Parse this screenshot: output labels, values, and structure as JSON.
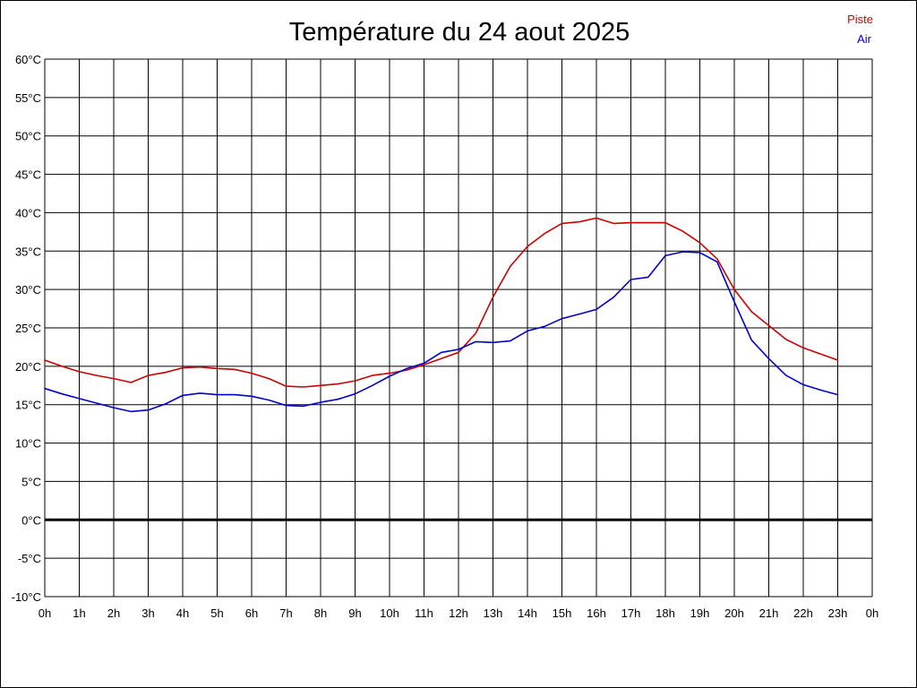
{
  "chart_data": {
    "type": "line",
    "title": "Température du 24 aout 2025",
    "xlabel": "",
    "ylabel": "",
    "x_ticks": [
      "0h",
      "1h",
      "2h",
      "3h",
      "4h",
      "5h",
      "6h",
      "7h",
      "8h",
      "9h",
      "10h",
      "11h",
      "12h",
      "13h",
      "14h",
      "15h",
      "16h",
      "17h",
      "18h",
      "19h",
      "20h",
      "21h",
      "22h",
      "23h",
      "0h"
    ],
    "y_ticks": [
      "60°C",
      "55°C",
      "50°C",
      "45°C",
      "40°C",
      "35°C",
      "30°C",
      "25°C",
      "20°C",
      "15°C",
      "10°C",
      "5°C",
      "0°C",
      "-5°C",
      "-10°C"
    ],
    "xlim": [
      0,
      24
    ],
    "ylim": [
      -10,
      60
    ],
    "grid": true,
    "legend_position": "top-right",
    "series": [
      {
        "name": "Piste",
        "color": "#cc0000",
        "points": [
          [
            0,
            20.8
          ],
          [
            0.5,
            20.0
          ],
          [
            1,
            19.3
          ],
          [
            1.5,
            18.8
          ],
          [
            2,
            18.4
          ],
          [
            2.5,
            17.9
          ],
          [
            3,
            18.8
          ],
          [
            3.5,
            19.2
          ],
          [
            4,
            19.8
          ],
          [
            4.5,
            19.9
          ],
          [
            5,
            19.7
          ],
          [
            5.5,
            19.6
          ],
          [
            6,
            19.1
          ],
          [
            6.5,
            18.4
          ],
          [
            7,
            17.4
          ],
          [
            7.5,
            17.3
          ],
          [
            8,
            17.5
          ],
          [
            8.5,
            17.7
          ],
          [
            9,
            18.1
          ],
          [
            9.5,
            18.8
          ],
          [
            10,
            19.1
          ],
          [
            10.5,
            19.5
          ],
          [
            11,
            20.2
          ],
          [
            11.5,
            21.0
          ],
          [
            12,
            21.8
          ],
          [
            12.5,
            24.3
          ],
          [
            13,
            29.0
          ],
          [
            13.5,
            33.0
          ],
          [
            14,
            35.6
          ],
          [
            14.5,
            37.3
          ],
          [
            15,
            38.6
          ],
          [
            15.5,
            38.8
          ],
          [
            16,
            39.3
          ],
          [
            16.5,
            38.6
          ],
          [
            17,
            38.7
          ],
          [
            17.5,
            38.7
          ],
          [
            18,
            38.7
          ],
          [
            18.5,
            37.6
          ],
          [
            19,
            36.1
          ],
          [
            19.5,
            34.0
          ],
          [
            20,
            30.0
          ],
          [
            20.5,
            27.1
          ],
          [
            21,
            25.3
          ],
          [
            21.5,
            23.5
          ],
          [
            22,
            22.4
          ],
          [
            22.5,
            21.6
          ],
          [
            23,
            20.8
          ]
        ]
      },
      {
        "name": "Air",
        "color": "#0000cc",
        "points": [
          [
            0,
            17.1
          ],
          [
            0.5,
            16.4
          ],
          [
            1,
            15.8
          ],
          [
            1.5,
            15.2
          ],
          [
            2,
            14.6
          ],
          [
            2.5,
            14.1
          ],
          [
            3,
            14.3
          ],
          [
            3.5,
            15.1
          ],
          [
            4,
            16.2
          ],
          [
            4.5,
            16.5
          ],
          [
            5,
            16.3
          ],
          [
            5.5,
            16.3
          ],
          [
            6,
            16.1
          ],
          [
            6.5,
            15.6
          ],
          [
            7,
            14.9
          ],
          [
            7.5,
            14.8
          ],
          [
            8,
            15.3
          ],
          [
            8.5,
            15.7
          ],
          [
            9,
            16.4
          ],
          [
            9.5,
            17.5
          ],
          [
            10,
            18.7
          ],
          [
            10.5,
            19.7
          ],
          [
            11,
            20.4
          ],
          [
            11.5,
            21.8
          ],
          [
            12,
            22.2
          ],
          [
            12.5,
            23.2
          ],
          [
            13,
            23.1
          ],
          [
            13.5,
            23.3
          ],
          [
            14,
            24.6
          ],
          [
            14.5,
            25.2
          ],
          [
            15,
            26.2
          ],
          [
            15.5,
            26.8
          ],
          [
            16,
            27.4
          ],
          [
            16.5,
            29.0
          ],
          [
            17,
            31.3
          ],
          [
            17.5,
            31.6
          ],
          [
            18,
            34.4
          ],
          [
            18.5,
            34.9
          ],
          [
            19,
            34.8
          ],
          [
            19.5,
            33.6
          ],
          [
            20,
            28.4
          ],
          [
            20.5,
            23.4
          ],
          [
            21,
            21.0
          ],
          [
            21.5,
            18.8
          ],
          [
            22,
            17.6
          ],
          [
            22.5,
            16.9
          ],
          [
            23,
            16.3
          ]
        ]
      }
    ]
  }
}
